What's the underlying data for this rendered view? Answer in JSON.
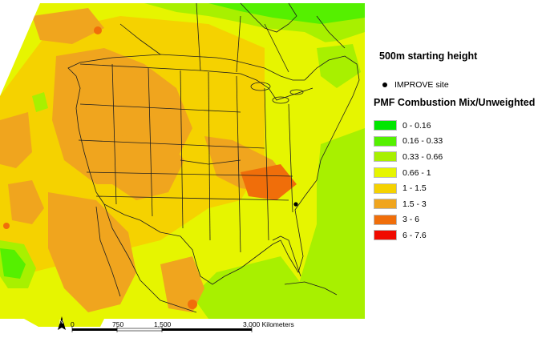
{
  "legend": {
    "heading": "500m starting height",
    "site_marker_label": "IMPROVE site",
    "variable_title": "PMF Combustion Mix/Unweighted",
    "classes": [
      {
        "label": "0 - 0.16",
        "color": "#00e600"
      },
      {
        "label": "0.16 - 0.33",
        "color": "#55f000"
      },
      {
        "label": "0.33 - 0.66",
        "color": "#a8f000"
      },
      {
        "label": "0.66 - 1",
        "color": "#e6f500"
      },
      {
        "label": "1 - 1.5",
        "color": "#f5d200"
      },
      {
        "label": "1.5 - 3",
        "color": "#f0a51e"
      },
      {
        "label": "3 - 6",
        "color": "#f06e0a"
      },
      {
        "label": "6 - 7.6",
        "color": "#f00a00"
      }
    ]
  },
  "scale_bar": {
    "tick_labels": [
      "0",
      "750",
      "1,500",
      "3,000 Kilometers"
    ]
  },
  "north_arrow": {
    "label": "N"
  },
  "map": {
    "background_color": "#ffffff",
    "boundary_color": "#1e1e1e"
  }
}
